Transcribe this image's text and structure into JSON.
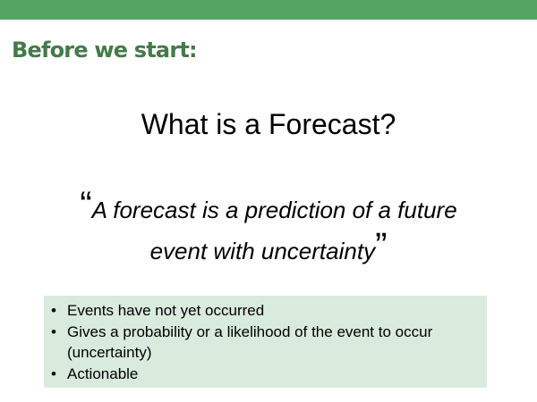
{
  "colors": {
    "top_bar": "#54a463",
    "heading": "#437a49",
    "box_background": "#d9ebdc"
  },
  "slide": {
    "heading": "Before we start:",
    "title": "What is a Forecast?",
    "quote": {
      "open_mark": "“",
      "line1": "A forecast is a prediction of a future",
      "line2": "event with uncertainty",
      "close_mark": "”"
    },
    "bullets": [
      "Events have not yet occurred",
      "Gives a probability or a likelihood of the event to occur (uncertainty)",
      "Actionable"
    ]
  }
}
